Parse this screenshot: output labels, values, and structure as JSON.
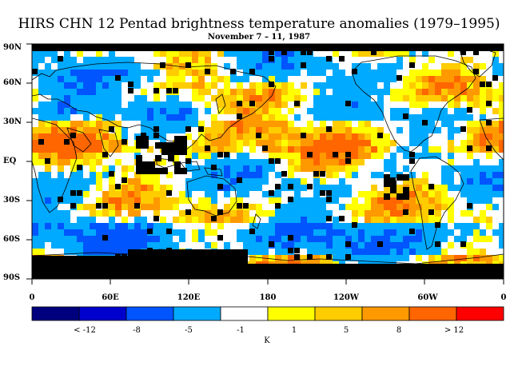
{
  "title": "HIRS CHN 12 Pentad brightness temperature anomalies (1979–1995)",
  "subtitle": "November 7 – 11, 1987",
  "lat_labels": [
    "90N",
    "60N",
    "30N",
    "EQ",
    "30S",
    "60S",
    "90S"
  ],
  "lon_labels": [
    "0",
    "60E",
    "120E",
    "180",
    "120W",
    "60W",
    "0"
  ],
  "colorbar": {
    "colors": [
      "#00007f",
      "#0000cc",
      "#0055ff",
      "#00aaff",
      "#ffffff",
      "#ffff00",
      "#ffcc00",
      "#ff9900",
      "#ff6600",
      "#ff0000"
    ],
    "labels": [
      "< -12",
      "-8",
      "-5",
      "-1",
      "1",
      "5",
      "8",
      "> 12"
    ],
    "unit": "K"
  },
  "colors": {
    "land_outline": "#000000",
    "missing": "#000000"
  }
}
